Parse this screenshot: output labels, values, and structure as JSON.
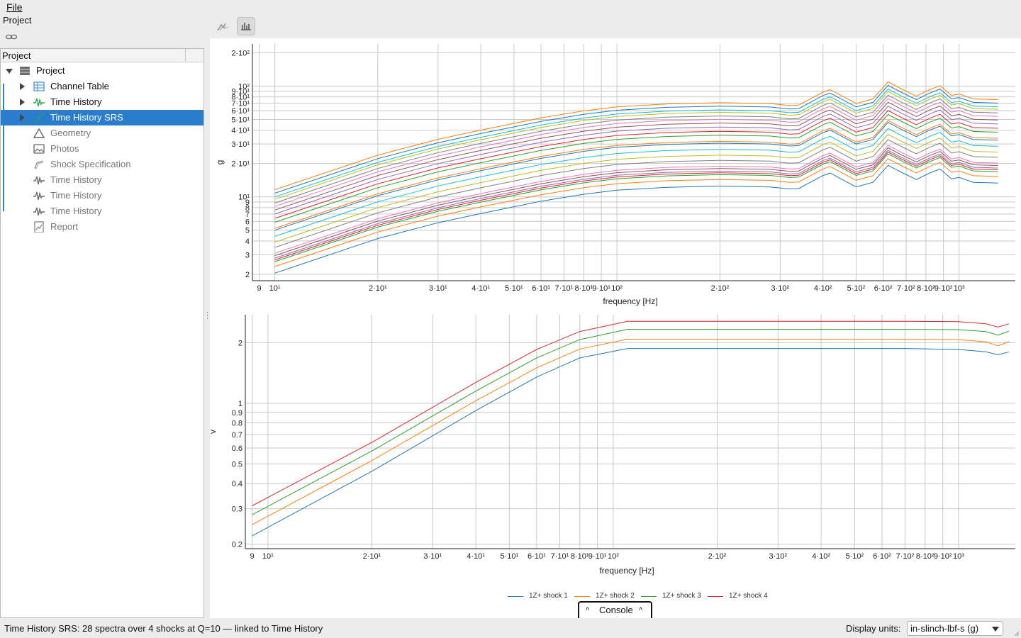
{
  "menu": {
    "file": "File"
  },
  "panel_title": "Project",
  "tree": {
    "header": "Project",
    "items": [
      {
        "label": "Project",
        "icon": "database-icon",
        "expand": "down",
        "indent": 0,
        "state": "normal"
      },
      {
        "label": "Channel Table",
        "icon": "table-icon",
        "expand": "right",
        "indent": 1,
        "state": "normal"
      },
      {
        "label": "Time History",
        "icon": "waveform-icon",
        "expand": "right",
        "indent": 1,
        "state": "normal"
      },
      {
        "label": "Time History SRS",
        "icon": "srs-curve-icon",
        "expand": "right",
        "indent": 1,
        "state": "selected"
      },
      {
        "label": "Geometry",
        "icon": "triangle-icon",
        "expand": "",
        "indent": 1,
        "state": "dim"
      },
      {
        "label": "Photos",
        "icon": "photo-icon",
        "expand": "",
        "indent": 1,
        "state": "dim"
      },
      {
        "label": "Shock Specification",
        "icon": "spec-curve-icon",
        "expand": "",
        "indent": 1,
        "state": "dim"
      },
      {
        "label": "Time History",
        "icon": "waveform-icon",
        "expand": "",
        "indent": 1,
        "state": "dim"
      },
      {
        "label": "Time History",
        "icon": "waveform-icon",
        "expand": "",
        "indent": 1,
        "state": "dim"
      },
      {
        "label": "Time History",
        "icon": "waveform-icon",
        "expand": "",
        "indent": 1,
        "state": "dim"
      },
      {
        "label": "Report",
        "icon": "report-icon",
        "expand": "",
        "indent": 1,
        "state": "dim"
      }
    ]
  },
  "toolbar": {
    "srs_view": "srs-view-icon",
    "bar_view": "bar-chart-icon"
  },
  "colors": {
    "selection": "#2a7ccc",
    "link_bracket": "#2e7fd6",
    "series": [
      "#1f77b4",
      "#ff7f0e",
      "#2ca02c",
      "#d62728",
      "#9467bd",
      "#8c564b",
      "#e377c2",
      "#7f7f7f",
      "#bcbd22",
      "#17becf"
    ]
  },
  "chart_data": [
    {
      "type": "line",
      "xlabel": "frequency [Hz]",
      "ylabel": "g",
      "xscale": "log",
      "yscale": "log",
      "xlim": [
        8.6,
        1460
      ],
      "ylim": [
        1.75,
        240
      ],
      "x_ticks": [
        {
          "v": 9,
          "label": "9"
        },
        {
          "v": 10,
          "label": "10¹"
        },
        {
          "v": 20,
          "label": "2·10¹"
        },
        {
          "v": 30,
          "label": "3·10¹"
        },
        {
          "v": 40,
          "label": "4·10¹"
        },
        {
          "v": 50,
          "label": "5·10¹"
        },
        {
          "v": 60,
          "label": "6·10¹"
        },
        {
          "v": 70,
          "label": "7·10¹"
        },
        {
          "v": 80,
          "label": "8·10¹"
        },
        {
          "v": 90,
          "label": "9·10¹"
        },
        {
          "v": 100,
          "label": "10²"
        },
        {
          "v": 200,
          "label": "2·10²"
        },
        {
          "v": 300,
          "label": "3·10²"
        },
        {
          "v": 400,
          "label": "4·10²"
        },
        {
          "v": 500,
          "label": "5·10²"
        },
        {
          "v": 600,
          "label": "6·10²"
        },
        {
          "v": 700,
          "label": "7·10²"
        },
        {
          "v": 800,
          "label": "8·10²"
        },
        {
          "v": 900,
          "label": "9·10²"
        },
        {
          "v": 1000,
          "label": "10³"
        }
      ],
      "y_ticks": [
        {
          "v": 2,
          "label": "2"
        },
        {
          "v": 3,
          "label": "3"
        },
        {
          "v": 4,
          "label": "4"
        },
        {
          "v": 5,
          "label": "5"
        },
        {
          "v": 6,
          "label": "6"
        },
        {
          "v": 7,
          "label": "7"
        },
        {
          "v": 8,
          "label": "8"
        },
        {
          "v": 9,
          "label": "9"
        },
        {
          "v": 10,
          "label": "10¹"
        },
        {
          "v": 20,
          "label": "2·10¹"
        },
        {
          "v": 30,
          "label": "3·10¹"
        },
        {
          "v": 40,
          "label": "4·10¹"
        },
        {
          "v": 50,
          "label": "5·10¹"
        },
        {
          "v": 60,
          "label": "6·10¹"
        },
        {
          "v": 70,
          "label": "7·10¹"
        },
        {
          "v": 80,
          "label": "8·10¹"
        },
        {
          "v": 90,
          "label": "9·10¹"
        },
        {
          "v": 100,
          "label": "10²"
        },
        {
          "v": 200,
          "label": "2·10²"
        }
      ],
      "x": [
        10,
        20,
        30,
        40,
        60,
        80,
        100,
        140,
        200,
        280,
        320,
        340,
        400,
        420,
        500,
        560,
        620,
        680,
        750,
        820,
        880,
        950,
        1000,
        1100,
        1300
      ],
      "shape": [
        1.0,
        2.05,
        2.85,
        3.45,
        4.45,
        5.15,
        5.6,
        5.95,
        6.1,
        6.0,
        5.75,
        5.8,
        7.6,
        8.0,
        6.0,
        6.6,
        9.4,
        8.1,
        7.0,
        8.0,
        8.7,
        7.1,
        7.3,
        6.6,
        6.5
      ],
      "series_base": [
        2.05,
        2.35,
        2.6,
        2.7,
        2.8,
        2.95,
        3.1,
        3.5,
        3.9,
        4.4,
        5.0,
        5.2,
        5.9,
        6.4,
        7.0,
        7.6,
        8.2,
        8.8,
        9.5,
        10.0,
        10.8,
        11.6
      ]
    },
    {
      "type": "line",
      "xlabel": "frequency [Hz]",
      "ylabel": "v",
      "xscale": "log",
      "yscale": "log",
      "xlim": [
        8.6,
        1460
      ],
      "ylim": [
        0.19,
        2.75
      ],
      "x_ticks": [
        {
          "v": 9,
          "label": "9"
        },
        {
          "v": 10,
          "label": "10¹"
        },
        {
          "v": 20,
          "label": "2·10¹"
        },
        {
          "v": 30,
          "label": "3·10¹"
        },
        {
          "v": 40,
          "label": "4·10¹"
        },
        {
          "v": 50,
          "label": "5·10¹"
        },
        {
          "v": 60,
          "label": "6·10¹"
        },
        {
          "v": 70,
          "label": "7·10¹"
        },
        {
          "v": 80,
          "label": "8·10¹"
        },
        {
          "v": 90,
          "label": "9·10¹"
        },
        {
          "v": 100,
          "label": "10²"
        },
        {
          "v": 200,
          "label": "2·10²"
        },
        {
          "v": 300,
          "label": "3·10²"
        },
        {
          "v": 400,
          "label": "4·10²"
        },
        {
          "v": 500,
          "label": "5·10²"
        },
        {
          "v": 600,
          "label": "6·10²"
        },
        {
          "v": 700,
          "label": "7·10²"
        },
        {
          "v": 800,
          "label": "8·10²"
        },
        {
          "v": 900,
          "label": "9·10²"
        },
        {
          "v": 1000,
          "label": "10³"
        }
      ],
      "y_ticks": [
        {
          "v": 0.2,
          "label": "0.2"
        },
        {
          "v": 0.3,
          "label": "0.3"
        },
        {
          "v": 0.4,
          "label": "0.4"
        },
        {
          "v": 0.5,
          "label": "0.5"
        },
        {
          "v": 0.6,
          "label": "0.6"
        },
        {
          "v": 0.7,
          "label": "0.7"
        },
        {
          "v": 0.8,
          "label": "0.8"
        },
        {
          "v": 0.9,
          "label": "0.9"
        },
        {
          "v": 1,
          "label": "1"
        },
        {
          "v": 2,
          "label": "2"
        }
      ],
      "legend": "bottom-center",
      "series": [
        {
          "name": "1Z+ shock 1",
          "x": [
            9,
            20,
            40,
            60,
            80,
            110,
            200,
            400,
            700,
            1000,
            1200,
            1300,
            1400
          ],
          "y": [
            0.22,
            0.46,
            0.92,
            1.35,
            1.68,
            1.87,
            1.87,
            1.87,
            1.87,
            1.85,
            1.8,
            1.74,
            1.8
          ]
        },
        {
          "name": "1Z+ shock 2",
          "x": [
            9,
            20,
            40,
            60,
            80,
            110,
            200,
            400,
            700,
            1000,
            1200,
            1300,
            1400
          ],
          "y": [
            0.25,
            0.52,
            1.03,
            1.5,
            1.86,
            2.08,
            2.08,
            2.08,
            2.08,
            2.07,
            2.02,
            1.93,
            2.02
          ]
        },
        {
          "name": "1Z+ shock 3",
          "x": [
            9,
            20,
            40,
            60,
            80,
            110,
            200,
            400,
            700,
            1000,
            1200,
            1300,
            1400
          ],
          "y": [
            0.28,
            0.58,
            1.15,
            1.68,
            2.07,
            2.33,
            2.33,
            2.33,
            2.33,
            2.32,
            2.27,
            2.18,
            2.28
          ]
        },
        {
          "name": "1Z+ shock 4",
          "x": [
            9,
            20,
            40,
            60,
            80,
            110,
            200,
            400,
            700,
            1000,
            1200,
            1300,
            1400
          ],
          "y": [
            0.31,
            0.64,
            1.27,
            1.85,
            2.27,
            2.55,
            2.55,
            2.55,
            2.55,
            2.54,
            2.48,
            2.39,
            2.48
          ]
        }
      ]
    }
  ],
  "legend": {
    "items": [
      {
        "name": "1Z+ shock 1",
        "color": "#1f77b4"
      },
      {
        "name": "1Z+ shock 2",
        "color": "#ff7f0e"
      },
      {
        "name": "1Z+ shock 3",
        "color": "#2ca02c"
      },
      {
        "name": "1Z+ shock 4",
        "color": "#d62728"
      }
    ]
  },
  "console": {
    "label": "Console",
    "caret": "^"
  },
  "status": {
    "text": "Time History SRS: 28 spectra over 4 shocks at Q=10 — linked to Time History",
    "units_label": "Display units:",
    "units_value": "in-slinch-lbf-s (g)"
  }
}
